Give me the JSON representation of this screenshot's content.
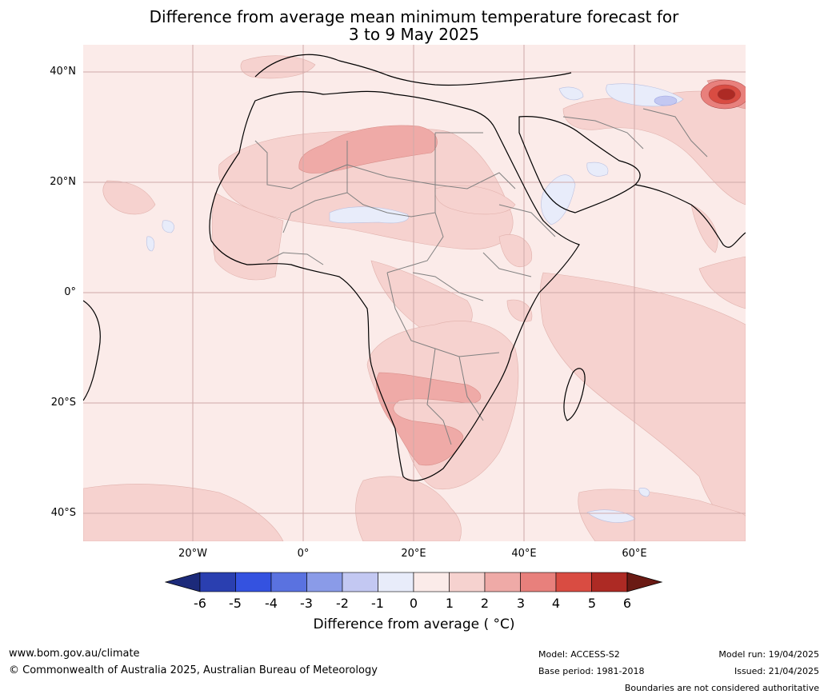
{
  "title": {
    "line1": "Difference from average mean minimum temperature forecast for",
    "line2": "3 to 9 May 2025"
  },
  "map": {
    "lat_labels": [
      "40°N",
      "20°N",
      "0°",
      "20°S",
      "40°S"
    ],
    "lon_labels": [
      "20°W",
      "0°",
      "20°E",
      "40°E",
      "60°E"
    ],
    "colors": {
      "ocean_base": "#fbebe9",
      "band_1_2": "#f6d2cf",
      "band_2_3": "#efaaa7",
      "band_3_4": "#e8807c",
      "band_4_5": "#d94c42",
      "band_5_6": "#ad2a24",
      "band_neg_0_1": "#e8ecfa",
      "band_neg_1_2": "#c3c8f2",
      "coastline": "#000000",
      "borders": "#808080",
      "gridlines": "#cfa9a9"
    }
  },
  "colorbar": {
    "ticks": [
      "-6",
      "-5",
      "-4",
      "-3",
      "-2",
      "-1",
      "0",
      "1",
      "2",
      "3",
      "4",
      "5",
      "6"
    ],
    "colors": [
      "#1c2a7a",
      "#2a3fb0",
      "#3452e0",
      "#5a72e0",
      "#8a9be8",
      "#c3c8f2",
      "#e8ecfa",
      "#fbebe9",
      "#f6d2cf",
      "#efaaa7",
      "#e8807c",
      "#d94c42",
      "#ad2a24",
      "#6a1a14"
    ],
    "label": "Difference from average ( °C)"
  },
  "footer": {
    "website": "www.bom.gov.au/climate",
    "copyright": "© Commonwealth of Australia 2025, Australian Bureau of Meteorology",
    "model": "Model: ACCESS-S2",
    "base_period": "Base period: 1981-2018",
    "model_run": "Model run: 19/04/2025",
    "issued": "Issued: 21/04/2025",
    "disclaimer": "Boundaries are not considered authoritative"
  }
}
